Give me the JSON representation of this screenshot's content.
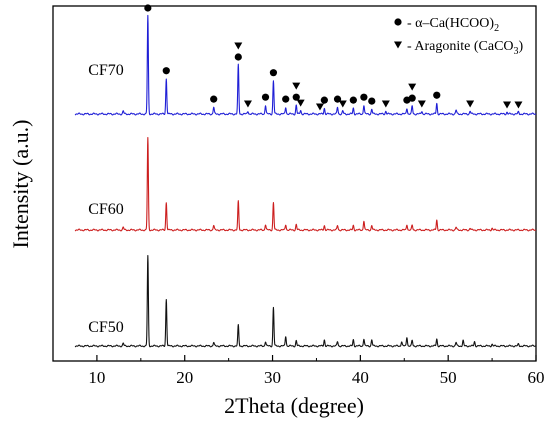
{
  "chart_data": {
    "type": "line",
    "xlabel": "2Theta (degree)",
    "ylabel": "Intensity (a.u.)",
    "xlim": [
      5,
      60
    ],
    "x_ticks": [
      10,
      20,
      30,
      40,
      50,
      60
    ],
    "grid": false,
    "legend_position": "top-right",
    "legend": [
      {
        "marker": "circle",
        "label": "α–Ca(HCOO)",
        "sub": "2"
      },
      {
        "marker": "triangle",
        "label": "Aragonite (CaCO",
        "sub": "3",
        "tail": ")"
      }
    ],
    "series": [
      {
        "name": "CF70",
        "color": "#1f1fd6",
        "peaks": [
          {
            "x": 13.0,
            "h": 0.03
          },
          {
            "x": 15.8,
            "h": 1.0
          },
          {
            "x": 17.9,
            "h": 0.36
          },
          {
            "x": 23.3,
            "h": 0.07
          },
          {
            "x": 26.1,
            "h": 0.5
          },
          {
            "x": 27.2,
            "h": 0.03
          },
          {
            "x": 29.2,
            "h": 0.09
          },
          {
            "x": 30.1,
            "h": 0.34
          },
          {
            "x": 31.5,
            "h": 0.07
          },
          {
            "x": 32.7,
            "h": 0.09
          },
          {
            "x": 33.2,
            "h": 0.04
          },
          {
            "x": 35.9,
            "h": 0.06
          },
          {
            "x": 37.4,
            "h": 0.07
          },
          {
            "x": 38.0,
            "h": 0.03
          },
          {
            "x": 39.2,
            "h": 0.06
          },
          {
            "x": 40.4,
            "h": 0.09
          },
          {
            "x": 41.3,
            "h": 0.05
          },
          {
            "x": 42.9,
            "h": 0.03
          },
          {
            "x": 45.3,
            "h": 0.06
          },
          {
            "x": 45.9,
            "h": 0.08
          },
          {
            "x": 47.0,
            "h": 0.03
          },
          {
            "x": 48.7,
            "h": 0.11
          },
          {
            "x": 50.9,
            "h": 0.04
          },
          {
            "x": 52.5,
            "h": 0.03
          },
          {
            "x": 56.7,
            "h": 0.02
          },
          {
            "x": 58.0,
            "h": 0.02
          }
        ],
        "circle_markers": [
          15.8,
          17.9,
          23.3,
          26.1,
          29.2,
          30.1,
          31.5,
          32.7,
          35.9,
          37.4,
          39.2,
          40.4,
          41.3,
          45.3,
          45.9,
          48.7
        ],
        "triangle_markers": [
          26.1,
          27.2,
          32.7,
          33.2,
          35.4,
          38.0,
          42.9,
          45.9,
          47.0,
          52.5,
          56.7,
          58.0
        ]
      },
      {
        "name": "CF60",
        "color": "#cc1e1e",
        "peaks": [
          {
            "x": 13.0,
            "h": 0.03
          },
          {
            "x": 15.8,
            "h": 1.0
          },
          {
            "x": 17.9,
            "h": 0.3
          },
          {
            "x": 23.3,
            "h": 0.05
          },
          {
            "x": 26.1,
            "h": 0.31
          },
          {
            "x": 29.2,
            "h": 0.06
          },
          {
            "x": 30.1,
            "h": 0.3
          },
          {
            "x": 31.5,
            "h": 0.06
          },
          {
            "x": 32.7,
            "h": 0.06
          },
          {
            "x": 35.9,
            "h": 0.05
          },
          {
            "x": 37.4,
            "h": 0.05
          },
          {
            "x": 39.2,
            "h": 0.05
          },
          {
            "x": 40.4,
            "h": 0.1
          },
          {
            "x": 41.3,
            "h": 0.05
          },
          {
            "x": 45.3,
            "h": 0.06
          },
          {
            "x": 45.9,
            "h": 0.05
          },
          {
            "x": 48.7,
            "h": 0.11
          },
          {
            "x": 50.9,
            "h": 0.03
          },
          {
            "x": 52.5,
            "h": 0.02
          },
          {
            "x": 55.0,
            "h": 0.02
          }
        ]
      },
      {
        "name": "CF50",
        "color": "#111111",
        "peaks": [
          {
            "x": 13.0,
            "h": 0.03
          },
          {
            "x": 15.8,
            "h": 1.0
          },
          {
            "x": 17.9,
            "h": 0.52
          },
          {
            "x": 23.3,
            "h": 0.04
          },
          {
            "x": 26.1,
            "h": 0.23
          },
          {
            "x": 29.2,
            "h": 0.05
          },
          {
            "x": 30.1,
            "h": 0.43
          },
          {
            "x": 31.5,
            "h": 0.11
          },
          {
            "x": 32.7,
            "h": 0.06
          },
          {
            "x": 35.9,
            "h": 0.07
          },
          {
            "x": 37.4,
            "h": 0.05
          },
          {
            "x": 39.2,
            "h": 0.07
          },
          {
            "x": 40.4,
            "h": 0.08
          },
          {
            "x": 41.3,
            "h": 0.07
          },
          {
            "x": 44.7,
            "h": 0.05
          },
          {
            "x": 45.3,
            "h": 0.1
          },
          {
            "x": 45.9,
            "h": 0.06
          },
          {
            "x": 48.7,
            "h": 0.08
          },
          {
            "x": 50.9,
            "h": 0.04
          },
          {
            "x": 51.7,
            "h": 0.06
          },
          {
            "x": 53.0,
            "h": 0.05
          },
          {
            "x": 55.0,
            "h": 0.02
          },
          {
            "x": 58.0,
            "h": 0.02
          }
        ]
      }
    ]
  }
}
